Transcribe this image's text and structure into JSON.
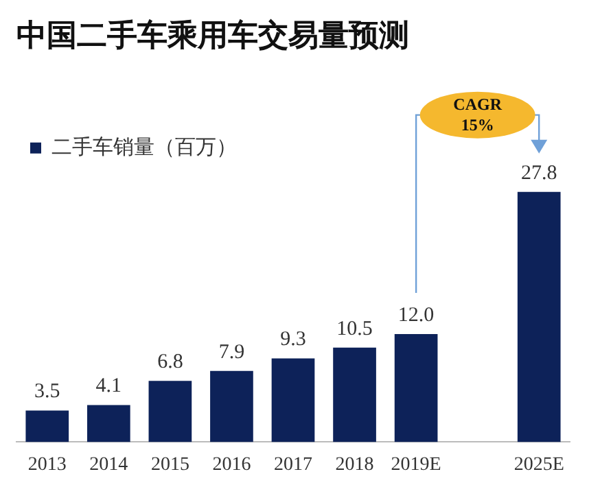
{
  "chart_data": {
    "type": "bar",
    "title": "中国二手车乘用车交易量预测",
    "categories": [
      "2013",
      "2014",
      "2015",
      "2016",
      "2017",
      "2018",
      "2019E",
      null,
      "2025E"
    ],
    "series": [
      {
        "name": "二手车销量（百万）",
        "color": "#0d2259",
        "values": [
          3.5,
          4.1,
          6.8,
          7.9,
          9.3,
          10.5,
          12.0,
          null,
          27.8
        ],
        "value_labels": [
          "3.5",
          "4.1",
          "6.8",
          "7.9",
          "9.3",
          "10.5",
          "12.0",
          null,
          "27.8"
        ]
      }
    ],
    "tick_labels": "x",
    "legend": "top left",
    "grid": false,
    "annotations": [
      "CAGR 15%"
    ]
  }
}
